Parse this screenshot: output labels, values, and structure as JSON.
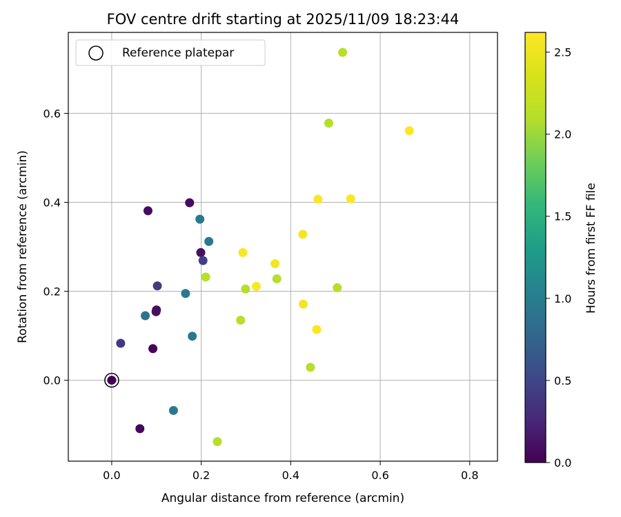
{
  "chart_data": {
    "type": "scatter",
    "title": "FOV centre drift starting at 2025/11/09 18:23:44",
    "xlabel": "Angular distance from reference (arcmin)",
    "ylabel": "Rotation from reference (arcmin)",
    "xlim": [
      -0.097,
      0.862
    ],
    "ylim": [
      -0.182,
      0.782
    ],
    "xticks": [
      0.0,
      0.2,
      0.4,
      0.6,
      0.8
    ],
    "xtick_labels": [
      "0.0",
      "0.2",
      "0.4",
      "0.6",
      "0.8"
    ],
    "yticks": [
      0.0,
      0.2,
      0.4,
      0.6
    ],
    "ytick_labels": [
      "0.0",
      "0.2",
      "0.4",
      "0.6"
    ],
    "grid": true,
    "legend": {
      "position": "top-left",
      "label": "Reference platepar"
    },
    "reference_point": {
      "x": 0.0,
      "y": 0.0
    },
    "colorbar": {
      "label": "Hours from first FF file",
      "range": [
        0.0,
        2.62
      ],
      "ticks": [
        0.0,
        0.5,
        1.0,
        1.5,
        2.0,
        2.5
      ],
      "tick_labels": [
        "0.0",
        "0.5",
        "1.0",
        "1.5",
        "2.0",
        "2.5"
      ],
      "colormap": "viridis"
    },
    "points": [
      {
        "x": 0.0,
        "y": 0.0,
        "t": 0.0
      },
      {
        "x": 0.063,
        "y": -0.109,
        "t": 0.05
      },
      {
        "x": 0.092,
        "y": 0.071,
        "t": 0.02
      },
      {
        "x": 0.1,
        "y": 0.158,
        "t": 0.06
      },
      {
        "x": 0.099,
        "y": 0.154,
        "t": 0.1
      },
      {
        "x": 0.081,
        "y": 0.381,
        "t": 0.08
      },
      {
        "x": 0.174,
        "y": 0.399,
        "t": 0.07
      },
      {
        "x": 0.199,
        "y": 0.287,
        "t": 0.1
      },
      {
        "x": 0.02,
        "y": 0.083,
        "t": 0.4
      },
      {
        "x": 0.102,
        "y": 0.212,
        "t": 0.42
      },
      {
        "x": 0.204,
        "y": 0.269,
        "t": 0.45
      },
      {
        "x": 0.075,
        "y": 0.145,
        "t": 0.9
      },
      {
        "x": 0.165,
        "y": 0.195,
        "t": 0.95
      },
      {
        "x": 0.18,
        "y": 0.099,
        "t": 0.95
      },
      {
        "x": 0.138,
        "y": -0.068,
        "t": 0.95
      },
      {
        "x": 0.197,
        "y": 0.362,
        "t": 0.95
      },
      {
        "x": 0.217,
        "y": 0.312,
        "t": 0.95
      },
      {
        "x": 0.236,
        "y": -0.138,
        "t": 2.1
      },
      {
        "x": 0.21,
        "y": 0.232,
        "t": 2.1
      },
      {
        "x": 0.288,
        "y": 0.135,
        "t": 2.1
      },
      {
        "x": 0.299,
        "y": 0.205,
        "t": 2.1
      },
      {
        "x": 0.369,
        "y": 0.228,
        "t": 2.1
      },
      {
        "x": 0.444,
        "y": 0.029,
        "t": 2.1
      },
      {
        "x": 0.485,
        "y": 0.578,
        "t": 2.1
      },
      {
        "x": 0.516,
        "y": 0.737,
        "t": 2.1
      },
      {
        "x": 0.504,
        "y": 0.208,
        "t": 2.1
      },
      {
        "x": 0.293,
        "y": 0.287,
        "t": 2.6
      },
      {
        "x": 0.323,
        "y": 0.211,
        "t": 2.6
      },
      {
        "x": 0.365,
        "y": 0.262,
        "t": 2.55
      },
      {
        "x": 0.427,
        "y": 0.328,
        "t": 2.55
      },
      {
        "x": 0.428,
        "y": 0.171,
        "t": 2.55
      },
      {
        "x": 0.458,
        "y": 0.114,
        "t": 2.6
      },
      {
        "x": 0.461,
        "y": 0.407,
        "t": 2.6
      },
      {
        "x": 0.534,
        "y": 0.408,
        "t": 2.6
      },
      {
        "x": 0.665,
        "y": 0.561,
        "t": 2.6
      }
    ]
  }
}
